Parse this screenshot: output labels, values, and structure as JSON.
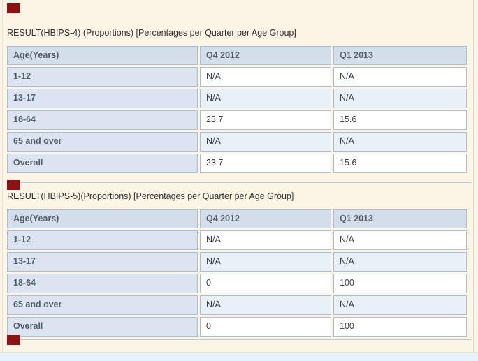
{
  "page": {
    "background_color": "#fcf5e5",
    "marker_color": "#8e1212",
    "footer_bar_color": "#e4f2fb",
    "cell_border_color": "#a9bed2",
    "header_cell_color": "#d4dee9",
    "banded_row_color": "#e9f0f7"
  },
  "sections": [
    {
      "title": "RESULT(HBIPS-4) (Proportions) [Percentages per Quarter per Age Group]",
      "table": {
        "columns": [
          "Age(Years)",
          "Q4 2012",
          "Q1 2013"
        ],
        "rows": [
          {
            "label": "1-12",
            "values": [
              "N/A",
              "N/A"
            ]
          },
          {
            "label": "13-17",
            "values": [
              "N/A",
              "N/A"
            ]
          },
          {
            "label": "18-64",
            "values": [
              "23.7",
              "15.6"
            ]
          },
          {
            "label": "65 and over",
            "values": [
              "N/A",
              "N/A"
            ]
          },
          {
            "label": "Overall",
            "values": [
              "23.7",
              "15.6"
            ]
          }
        ]
      }
    },
    {
      "title": "RESULT(HBIPS-5)(Proportions) [Percentages per Quarter per Age Group]",
      "table": {
        "columns": [
          "Age(Years)",
          "Q4 2012",
          "Q1 2013"
        ],
        "rows": [
          {
            "label": "1-12",
            "values": [
              "N/A",
              "N/A"
            ]
          },
          {
            "label": "13-17",
            "values": [
              "N/A",
              "N/A"
            ]
          },
          {
            "label": "18-64",
            "values": [
              "0",
              "100"
            ]
          },
          {
            "label": "65 and over",
            "values": [
              "N/A",
              "N/A"
            ]
          },
          {
            "label": "Overall",
            "values": [
              "0",
              "100"
            ]
          }
        ]
      }
    }
  ]
}
